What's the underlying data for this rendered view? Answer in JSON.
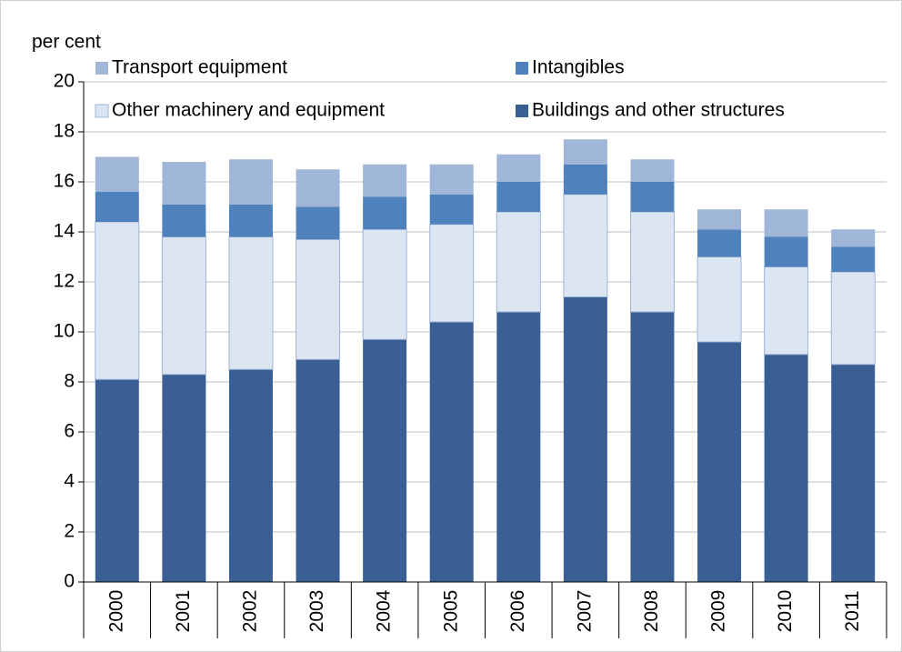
{
  "chart_data": {
    "type": "stacked_bar",
    "y_label": "per cent",
    "categories": [
      "2000",
      "2001",
      "2002",
      "2003",
      "2004",
      "2005",
      "2006",
      "2007",
      "2008",
      "2009",
      "2010",
      "2011"
    ],
    "series": [
      {
        "name": "Buildings and other structures",
        "color": "#3a5f94",
        "values": [
          8.1,
          8.3,
          8.5,
          8.9,
          9.7,
          10.4,
          10.8,
          11.4,
          10.8,
          9.6,
          9.1,
          8.7
        ]
      },
      {
        "name": "Other machinery and equipment",
        "color": "#dce6f2",
        "values": [
          6.3,
          5.5,
          5.3,
          4.8,
          4.4,
          3.9,
          4.0,
          4.1,
          4.0,
          3.4,
          3.5,
          3.7
        ]
      },
      {
        "name": "Intangibles",
        "color": "#4f81bd",
        "values": [
          1.2,
          1.3,
          1.3,
          1.3,
          1.3,
          1.2,
          1.2,
          1.2,
          1.2,
          1.1,
          1.2,
          1.0
        ]
      },
      {
        "name": "Transport equipment",
        "color": "#9fb6d8",
        "values": [
          1.4,
          1.7,
          1.8,
          1.5,
          1.3,
          1.2,
          1.1,
          1.0,
          0.9,
          0.8,
          1.1,
          0.7
        ]
      }
    ],
    "ylim": [
      0,
      20
    ],
    "yticks": [
      0,
      2,
      4,
      6,
      8,
      10,
      12,
      14,
      16,
      18,
      20
    ],
    "grid": true
  }
}
